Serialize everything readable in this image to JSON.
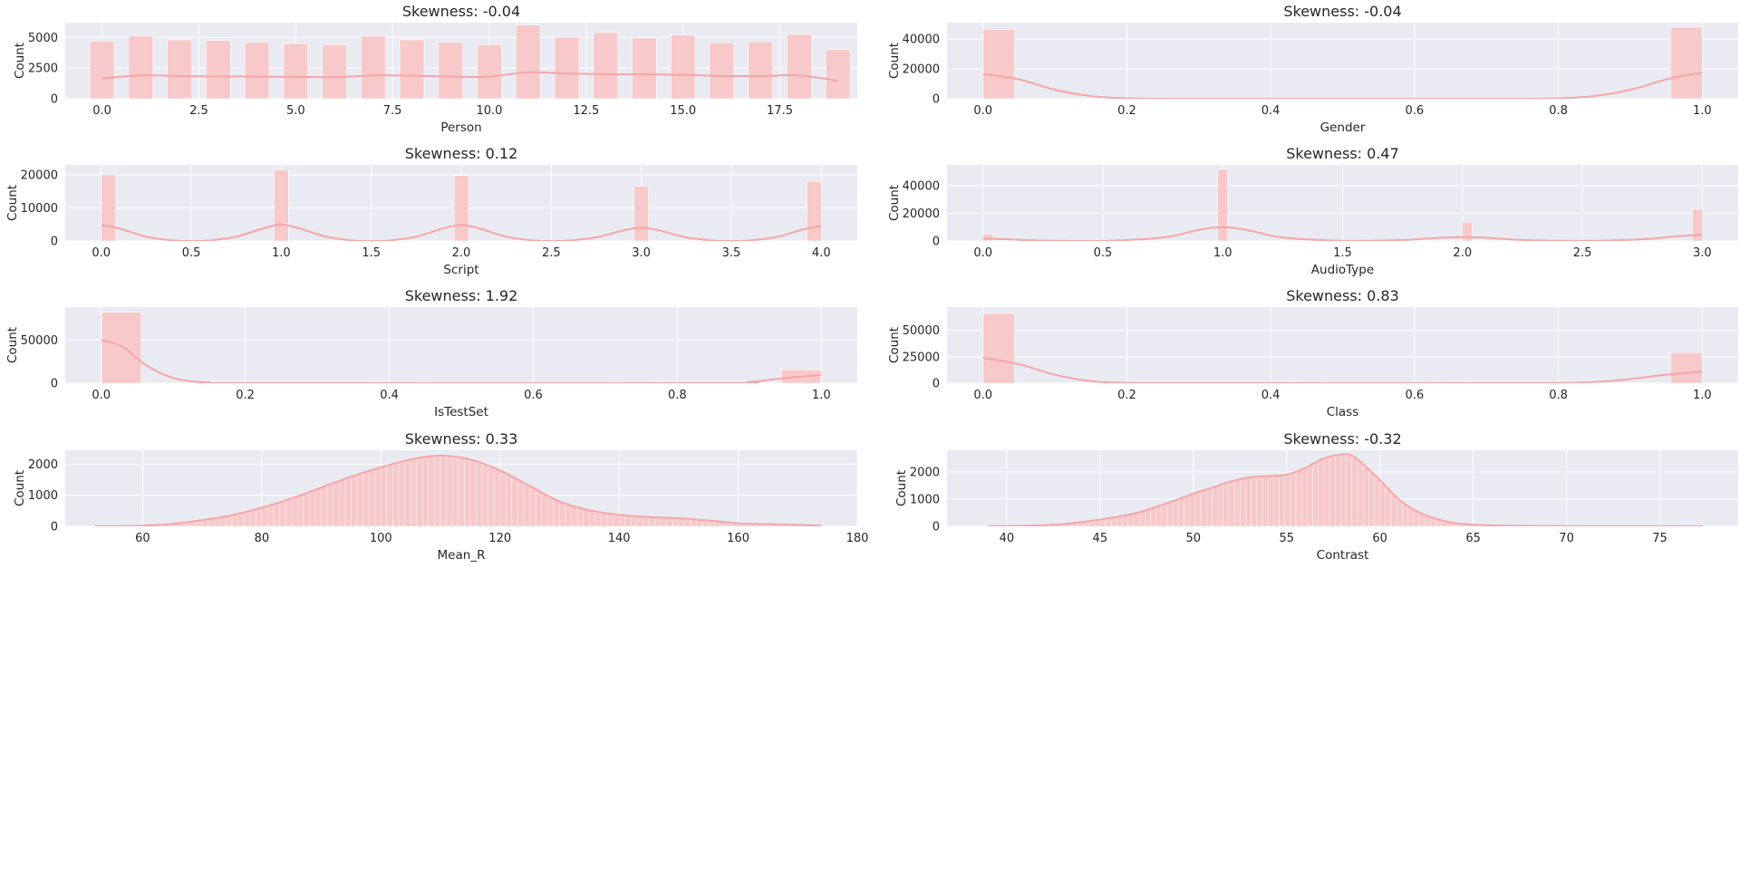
{
  "chart_data": [
    {
      "type": "bar",
      "title": "Skewness: -0.04",
      "xlabel": "Person",
      "ylabel": "Count",
      "xlim": [
        -0.95,
        19.5
      ],
      "ylim": [
        0,
        6200
      ],
      "xticks": [
        0.0,
        2.5,
        5.0,
        7.5,
        10.0,
        12.5,
        15.0,
        17.5
      ],
      "xtick_labels": [
        "0.0",
        "2.5",
        "5.0",
        "7.5",
        "10.0",
        "12.5",
        "15.0",
        "17.5"
      ],
      "yticks": [
        0,
        2500,
        5000
      ],
      "ytick_labels": [
        "0",
        "2500",
        "5000"
      ],
      "bar_width": 0.63,
      "bars": [
        {
          "x": 0,
          "y": 4700
        },
        {
          "x": 1,
          "y": 5100
        },
        {
          "x": 2,
          "y": 4800
        },
        {
          "x": 3,
          "y": 4750
        },
        {
          "x": 4,
          "y": 4600
        },
        {
          "x": 5,
          "y": 4500
        },
        {
          "x": 6,
          "y": 4400
        },
        {
          "x": 7,
          "y": 5100
        },
        {
          "x": 8,
          "y": 4800
        },
        {
          "x": 9,
          "y": 4600
        },
        {
          "x": 10,
          "y": 4400
        },
        {
          "x": 11,
          "y": 6000
        },
        {
          "x": 12,
          "y": 5000
        },
        {
          "x": 13,
          "y": 5400
        },
        {
          "x": 14,
          "y": 4950
        },
        {
          "x": 15,
          "y": 5200
        },
        {
          "x": 16,
          "y": 4550
        },
        {
          "x": 17,
          "y": 4650
        },
        {
          "x": 18,
          "y": 5250
        },
        {
          "x": 19,
          "y": 4000
        }
      ],
      "kde": [
        [
          0,
          1650
        ],
        [
          1,
          1900
        ],
        [
          2,
          1850
        ],
        [
          3,
          1820
        ],
        [
          4,
          1800
        ],
        [
          5,
          1780
        ],
        [
          6,
          1760
        ],
        [
          7,
          1900
        ],
        [
          8,
          1880
        ],
        [
          9,
          1800
        ],
        [
          10,
          1800
        ],
        [
          11,
          2150
        ],
        [
          12,
          2050
        ],
        [
          13,
          2000
        ],
        [
          14,
          1980
        ],
        [
          15,
          1950
        ],
        [
          16,
          1850
        ],
        [
          17,
          1850
        ],
        [
          18,
          1900
        ],
        [
          19,
          1450
        ]
      ]
    },
    {
      "type": "bar",
      "title": "Skewness: -0.04",
      "xlabel": "Gender",
      "ylabel": "Count",
      "xlim": [
        -0.05,
        1.05
      ],
      "ylim": [
        0,
        51000
      ],
      "xticks": [
        0.0,
        0.2,
        0.4,
        0.6,
        0.8,
        1.0
      ],
      "xtick_labels": [
        "0.0",
        "0.2",
        "0.4",
        "0.6",
        "0.8",
        "1.0"
      ],
      "yticks": [
        0,
        20000,
        40000
      ],
      "ytick_labels": [
        "0",
        "20000",
        "40000"
      ],
      "bar_width": 0.044,
      "bars": [
        {
          "x": 0.022,
          "y": 46500
        },
        {
          "x": 0.978,
          "y": 48000
        }
      ],
      "kde": [
        [
          0,
          16500
        ],
        [
          0.05,
          13000
        ],
        [
          0.1,
          6000
        ],
        [
          0.15,
          1800
        ],
        [
          0.2,
          300
        ],
        [
          0.3,
          0
        ],
        [
          0.7,
          0
        ],
        [
          0.8,
          300
        ],
        [
          0.85,
          1800
        ],
        [
          0.9,
          6000
        ],
        [
          0.95,
          13000
        ],
        [
          1.0,
          17500
        ]
      ]
    },
    {
      "type": "bar",
      "title": "Skewness: 0.12",
      "xlabel": "Script",
      "ylabel": "Count",
      "xlim": [
        -0.2,
        4.2
      ],
      "ylim": [
        0,
        23000
      ],
      "xticks": [
        0.0,
        0.5,
        1.0,
        1.5,
        2.0,
        2.5,
        3.0,
        3.5,
        4.0
      ],
      "xtick_labels": [
        "0.0",
        "0.5",
        "1.0",
        "1.5",
        "2.0",
        "2.5",
        "3.0",
        "3.5",
        "4.0"
      ],
      "yticks": [
        0,
        10000,
        20000
      ],
      "ytick_labels": [
        "0",
        "10000",
        "20000"
      ],
      "bar_width": 0.08,
      "bars": [
        {
          "x": 0.04,
          "y": 20000
        },
        {
          "x": 1.0,
          "y": 21500
        },
        {
          "x": 2.0,
          "y": 19800
        },
        {
          "x": 3.0,
          "y": 16500
        },
        {
          "x": 3.96,
          "y": 18000
        }
      ],
      "kde": [
        [
          0,
          4800
        ],
        [
          0.1,
          3800
        ],
        [
          0.25,
          1300
        ],
        [
          0.4,
          150
        ],
        [
          0.5,
          0
        ],
        [
          0.6,
          150
        ],
        [
          0.75,
          1300
        ],
        [
          0.9,
          3800
        ],
        [
          1.0,
          5000
        ],
        [
          1.1,
          3800
        ],
        [
          1.25,
          1300
        ],
        [
          1.4,
          150
        ],
        [
          1.5,
          0
        ],
        [
          1.6,
          150
        ],
        [
          1.75,
          1300
        ],
        [
          1.9,
          3800
        ],
        [
          2.0,
          4800
        ],
        [
          2.1,
          3800
        ],
        [
          2.25,
          1300
        ],
        [
          2.4,
          150
        ],
        [
          2.5,
          0
        ],
        [
          2.6,
          150
        ],
        [
          2.75,
          1100
        ],
        [
          2.9,
          3200
        ],
        [
          3.0,
          4000
        ],
        [
          3.1,
          3200
        ],
        [
          3.25,
          1100
        ],
        [
          3.4,
          150
        ],
        [
          3.5,
          0
        ],
        [
          3.6,
          150
        ],
        [
          3.75,
          1200
        ],
        [
          3.9,
          3500
        ],
        [
          4.0,
          4500
        ]
      ]
    },
    {
      "type": "bar",
      "title": "Skewness: 0.47",
      "xlabel": "AudioType",
      "ylabel": "Count",
      "xlim": [
        -0.15,
        3.15
      ],
      "ylim": [
        0,
        55000
      ],
      "xticks": [
        0.0,
        0.5,
        1.0,
        1.5,
        2.0,
        2.5,
        3.0
      ],
      "xtick_labels": [
        "0.0",
        "0.5",
        "1.0",
        "1.5",
        "2.0",
        "2.5",
        "3.0"
      ],
      "yticks": [
        0,
        20000,
        40000
      ],
      "ytick_labels": [
        "0",
        "20000",
        "40000"
      ],
      "bar_width": 0.042,
      "bars": [
        {
          "x": 0.021,
          "y": 5000
        },
        {
          "x": 1.0,
          "y": 52000
        },
        {
          "x": 2.02,
          "y": 13500
        },
        {
          "x": 2.98,
          "y": 23000
        }
      ],
      "kde": [
        [
          0,
          1800
        ],
        [
          0.1,
          1200
        ],
        [
          0.25,
          300
        ],
        [
          0.5,
          100
        ],
        [
          0.75,
          2500
        ],
        [
          0.9,
          8000
        ],
        [
          1.0,
          10000
        ],
        [
          1.1,
          8000
        ],
        [
          1.25,
          2500
        ],
        [
          1.5,
          150
        ],
        [
          1.75,
          700
        ],
        [
          1.9,
          2300
        ],
        [
          2.0,
          2800
        ],
        [
          2.1,
          2300
        ],
        [
          2.25,
          700
        ],
        [
          2.5,
          100
        ],
        [
          2.75,
          1200
        ],
        [
          2.9,
          3500
        ],
        [
          3.0,
          4500
        ]
      ]
    },
    {
      "type": "bar",
      "title": "Skewness: 1.92",
      "xlabel": "IsTestSet",
      "ylabel": "Count",
      "xlim": [
        -0.05,
        1.05
      ],
      "ylim": [
        0,
        88000
      ],
      "xticks": [
        0.0,
        0.2,
        0.4,
        0.6,
        0.8,
        1.0
      ],
      "xtick_labels": [
        "0.0",
        "0.2",
        "0.4",
        "0.6",
        "0.8",
        "1.0"
      ],
      "yticks": [
        0,
        50000
      ],
      "ytick_labels": [
        "0",
        "50000"
      ],
      "bar_width": 0.055,
      "bars": [
        {
          "x": 0.028,
          "y": 82000
        },
        {
          "x": 0.972,
          "y": 15500
        }
      ],
      "kde": [
        [
          0,
          50000
        ],
        [
          0.03,
          42000
        ],
        [
          0.06,
          22000
        ],
        [
          0.1,
          6000
        ],
        [
          0.15,
          600
        ],
        [
          0.2,
          0
        ],
        [
          0.85,
          0
        ],
        [
          0.9,
          1500
        ],
        [
          0.95,
          6000
        ],
        [
          1.0,
          9500
        ]
      ]
    },
    {
      "type": "bar",
      "title": "Skewness: 0.83",
      "xlabel": "Class",
      "ylabel": "Count",
      "xlim": [
        -0.05,
        1.05
      ],
      "ylim": [
        0,
        72000
      ],
      "xticks": [
        0.0,
        0.2,
        0.4,
        0.6,
        0.8,
        1.0
      ],
      "xtick_labels": [
        "0.0",
        "0.2",
        "0.4",
        "0.6",
        "0.8",
        "1.0"
      ],
      "yticks": [
        0,
        25000,
        50000
      ],
      "ytick_labels": [
        "0",
        "25000",
        "50000"
      ],
      "bar_width": 0.044,
      "bars": [
        {
          "x": 0.022,
          "y": 66000
        },
        {
          "x": 0.978,
          "y": 29000
        }
      ],
      "kde": [
        [
          0,
          24000
        ],
        [
          0.05,
          18000
        ],
        [
          0.1,
          8000
        ],
        [
          0.15,
          2000
        ],
        [
          0.2,
          300
        ],
        [
          0.3,
          0
        ],
        [
          0.75,
          0
        ],
        [
          0.85,
          1200
        ],
        [
          0.9,
          4000
        ],
        [
          0.95,
          8000
        ],
        [
          1.0,
          11000
        ]
      ]
    },
    {
      "type": "bar",
      "title": "Skewness: 0.33",
      "xlabel": "Mean_R",
      "ylabel": "Count",
      "xlim": [
        47,
        180
      ],
      "ylim": [
        0,
        2450
      ],
      "xticks": [
        60,
        80,
        100,
        120,
        140,
        160,
        180
      ],
      "xtick_labels": [
        "60",
        "80",
        "100",
        "120",
        "140",
        "160",
        "180"
      ],
      "yticks": [
        0,
        1000,
        2000
      ],
      "ytick_labels": [
        "0",
        "1000",
        "2000"
      ],
      "bin_start": 52,
      "bin_width": 1,
      "counts_curve": [
        [
          52,
          2
        ],
        [
          55,
          5
        ],
        [
          60,
          20
        ],
        [
          65,
          80
        ],
        [
          70,
          200
        ],
        [
          75,
          360
        ],
        [
          80,
          600
        ],
        [
          85,
          900
        ],
        [
          90,
          1250
        ],
        [
          95,
          1600
        ],
        [
          100,
          1900
        ],
        [
          105,
          2150
        ],
        [
          110,
          2280
        ],
        [
          115,
          2150
        ],
        [
          120,
          1800
        ],
        [
          125,
          1300
        ],
        [
          130,
          800
        ],
        [
          135,
          520
        ],
        [
          140,
          370
        ],
        [
          145,
          300
        ],
        [
          150,
          260
        ],
        [
          155,
          190
        ],
        [
          160,
          100
        ],
        [
          165,
          70
        ],
        [
          170,
          45
        ],
        [
          174,
          20
        ]
      ],
      "kde": [
        [
          52,
          2
        ],
        [
          55,
          5
        ],
        [
          60,
          20
        ],
        [
          65,
          80
        ],
        [
          70,
          200
        ],
        [
          75,
          360
        ],
        [
          80,
          600
        ],
        [
          85,
          900
        ],
        [
          90,
          1250
        ],
        [
          95,
          1600
        ],
        [
          100,
          1900
        ],
        [
          105,
          2150
        ],
        [
          110,
          2280
        ],
        [
          115,
          2150
        ],
        [
          120,
          1800
        ],
        [
          125,
          1300
        ],
        [
          130,
          800
        ],
        [
          135,
          520
        ],
        [
          140,
          370
        ],
        [
          145,
          300
        ],
        [
          150,
          260
        ],
        [
          155,
          190
        ],
        [
          160,
          100
        ],
        [
          165,
          70
        ],
        [
          170,
          45
        ],
        [
          174,
          20
        ]
      ]
    },
    {
      "type": "bar",
      "title": "Skewness: -0.32",
      "xlabel": "Contrast",
      "ylabel": "Count",
      "xlim": [
        36.8,
        79.2
      ],
      "ylim": [
        0,
        2800
      ],
      "xticks": [
        40,
        45,
        50,
        55,
        60,
        65,
        70,
        75
      ],
      "xtick_labels": [
        "40",
        "45",
        "50",
        "55",
        "60",
        "65",
        "70",
        "75"
      ],
      "yticks": [
        0,
        1000,
        2000
      ],
      "ytick_labels": [
        "0",
        "1000",
        "2000"
      ],
      "bin_start": 39,
      "bin_width": 0.3,
      "counts_curve": [
        [
          39,
          5
        ],
        [
          41,
          20
        ],
        [
          43,
          80
        ],
        [
          45,
          250
        ],
        [
          47,
          500
        ],
        [
          49,
          950
        ],
        [
          50,
          1200
        ],
        [
          51,
          1420
        ],
        [
          52,
          1650
        ],
        [
          53,
          1800
        ],
        [
          54,
          1850
        ],
        [
          55,
          1900
        ],
        [
          56,
          2150
        ],
        [
          57,
          2500
        ],
        [
          58,
          2650
        ],
        [
          58.5,
          2600
        ],
        [
          59,
          2350
        ],
        [
          60,
          1700
        ],
        [
          61,
          1000
        ],
        [
          62,
          550
        ],
        [
          63,
          280
        ],
        [
          64,
          120
        ],
        [
          65,
          60
        ],
        [
          67,
          20
        ],
        [
          70,
          8
        ],
        [
          75,
          3
        ],
        [
          77.3,
          1
        ]
      ],
      "kde": [
        [
          39,
          5
        ],
        [
          41,
          20
        ],
        [
          43,
          80
        ],
        [
          45,
          250
        ],
        [
          47,
          500
        ],
        [
          49,
          950
        ],
        [
          50,
          1200
        ],
        [
          51,
          1420
        ],
        [
          52,
          1650
        ],
        [
          53,
          1800
        ],
        [
          54,
          1850
        ],
        [
          55,
          1900
        ],
        [
          56,
          2150
        ],
        [
          57,
          2500
        ],
        [
          58,
          2650
        ],
        [
          58.5,
          2600
        ],
        [
          59,
          2350
        ],
        [
          60,
          1700
        ],
        [
          61,
          1000
        ],
        [
          62,
          550
        ],
        [
          63,
          280
        ],
        [
          64,
          120
        ],
        [
          65,
          60
        ],
        [
          67,
          20
        ],
        [
          70,
          8
        ],
        [
          75,
          3
        ],
        [
          77.3,
          1
        ]
      ]
    }
  ],
  "style": {
    "axes_facecolor": "#eaeaf2",
    "grid_color": "#ffffff",
    "bar_fill": "#f7c9ca",
    "bar_edge": "#ffffff",
    "kde_color": "#f5a6a8",
    "text_color": "#262626"
  }
}
